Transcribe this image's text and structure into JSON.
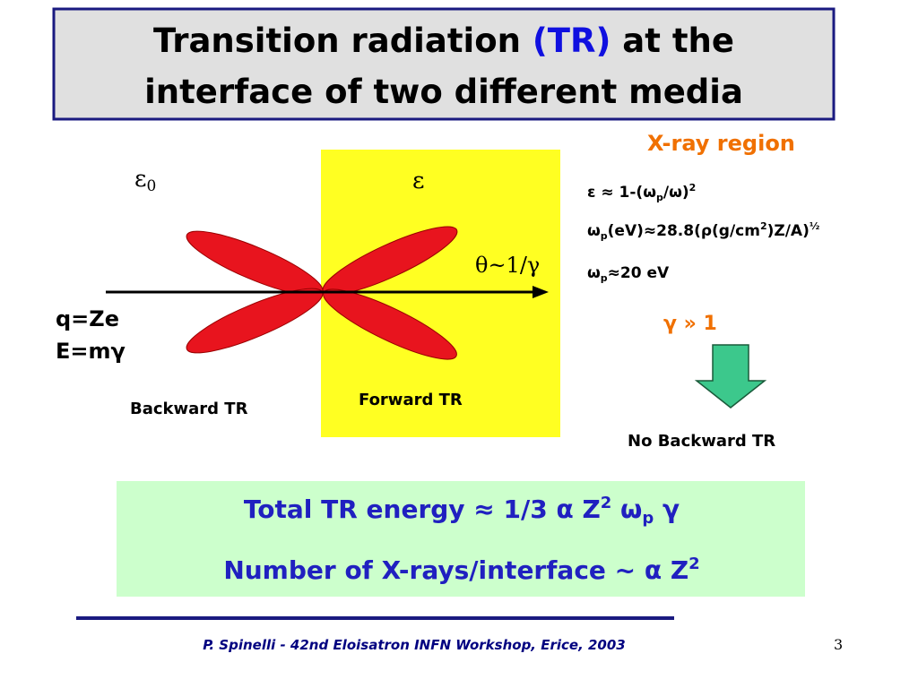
{
  "title": {
    "line1": [
      "Transition radiation ",
      "(TR)",
      " at the"
    ],
    "line2": "interface of two different media"
  },
  "diagram": {
    "medium_left": [
      "ε",
      "0"
    ],
    "medium_right": "ε",
    "angle": "θ~1/γ",
    "charge": "q=Ze",
    "energy": "E=mγ",
    "backward_label": "Backward TR",
    "forward_label": "Forward TR"
  },
  "xray": {
    "heading": "X-ray region",
    "formulas": [
      [
        "ε ≈ 1-(ω",
        "p",
        "/ω)",
        "2"
      ],
      [
        "ω",
        "p",
        "(eV)≈28.8(ρ(g/cm",
        "2",
        ")Z/A)",
        "½"
      ],
      [
        "ω",
        "p",
        "≈20 eV"
      ]
    ],
    "condition": "γ » 1",
    "conclusion": "No Backward TR"
  },
  "summary": {
    "energy": [
      "Total TR energy ≈ 1/3 α Z",
      "2",
      " ω",
      "p",
      " γ"
    ],
    "photons": [
      "Number of X-rays/interface ~ α Z",
      "2"
    ]
  },
  "footer": {
    "credit": "P. Spinelli - 42nd Eloisatron INFN Workshop, Erice, 2003",
    "page": 3
  }
}
